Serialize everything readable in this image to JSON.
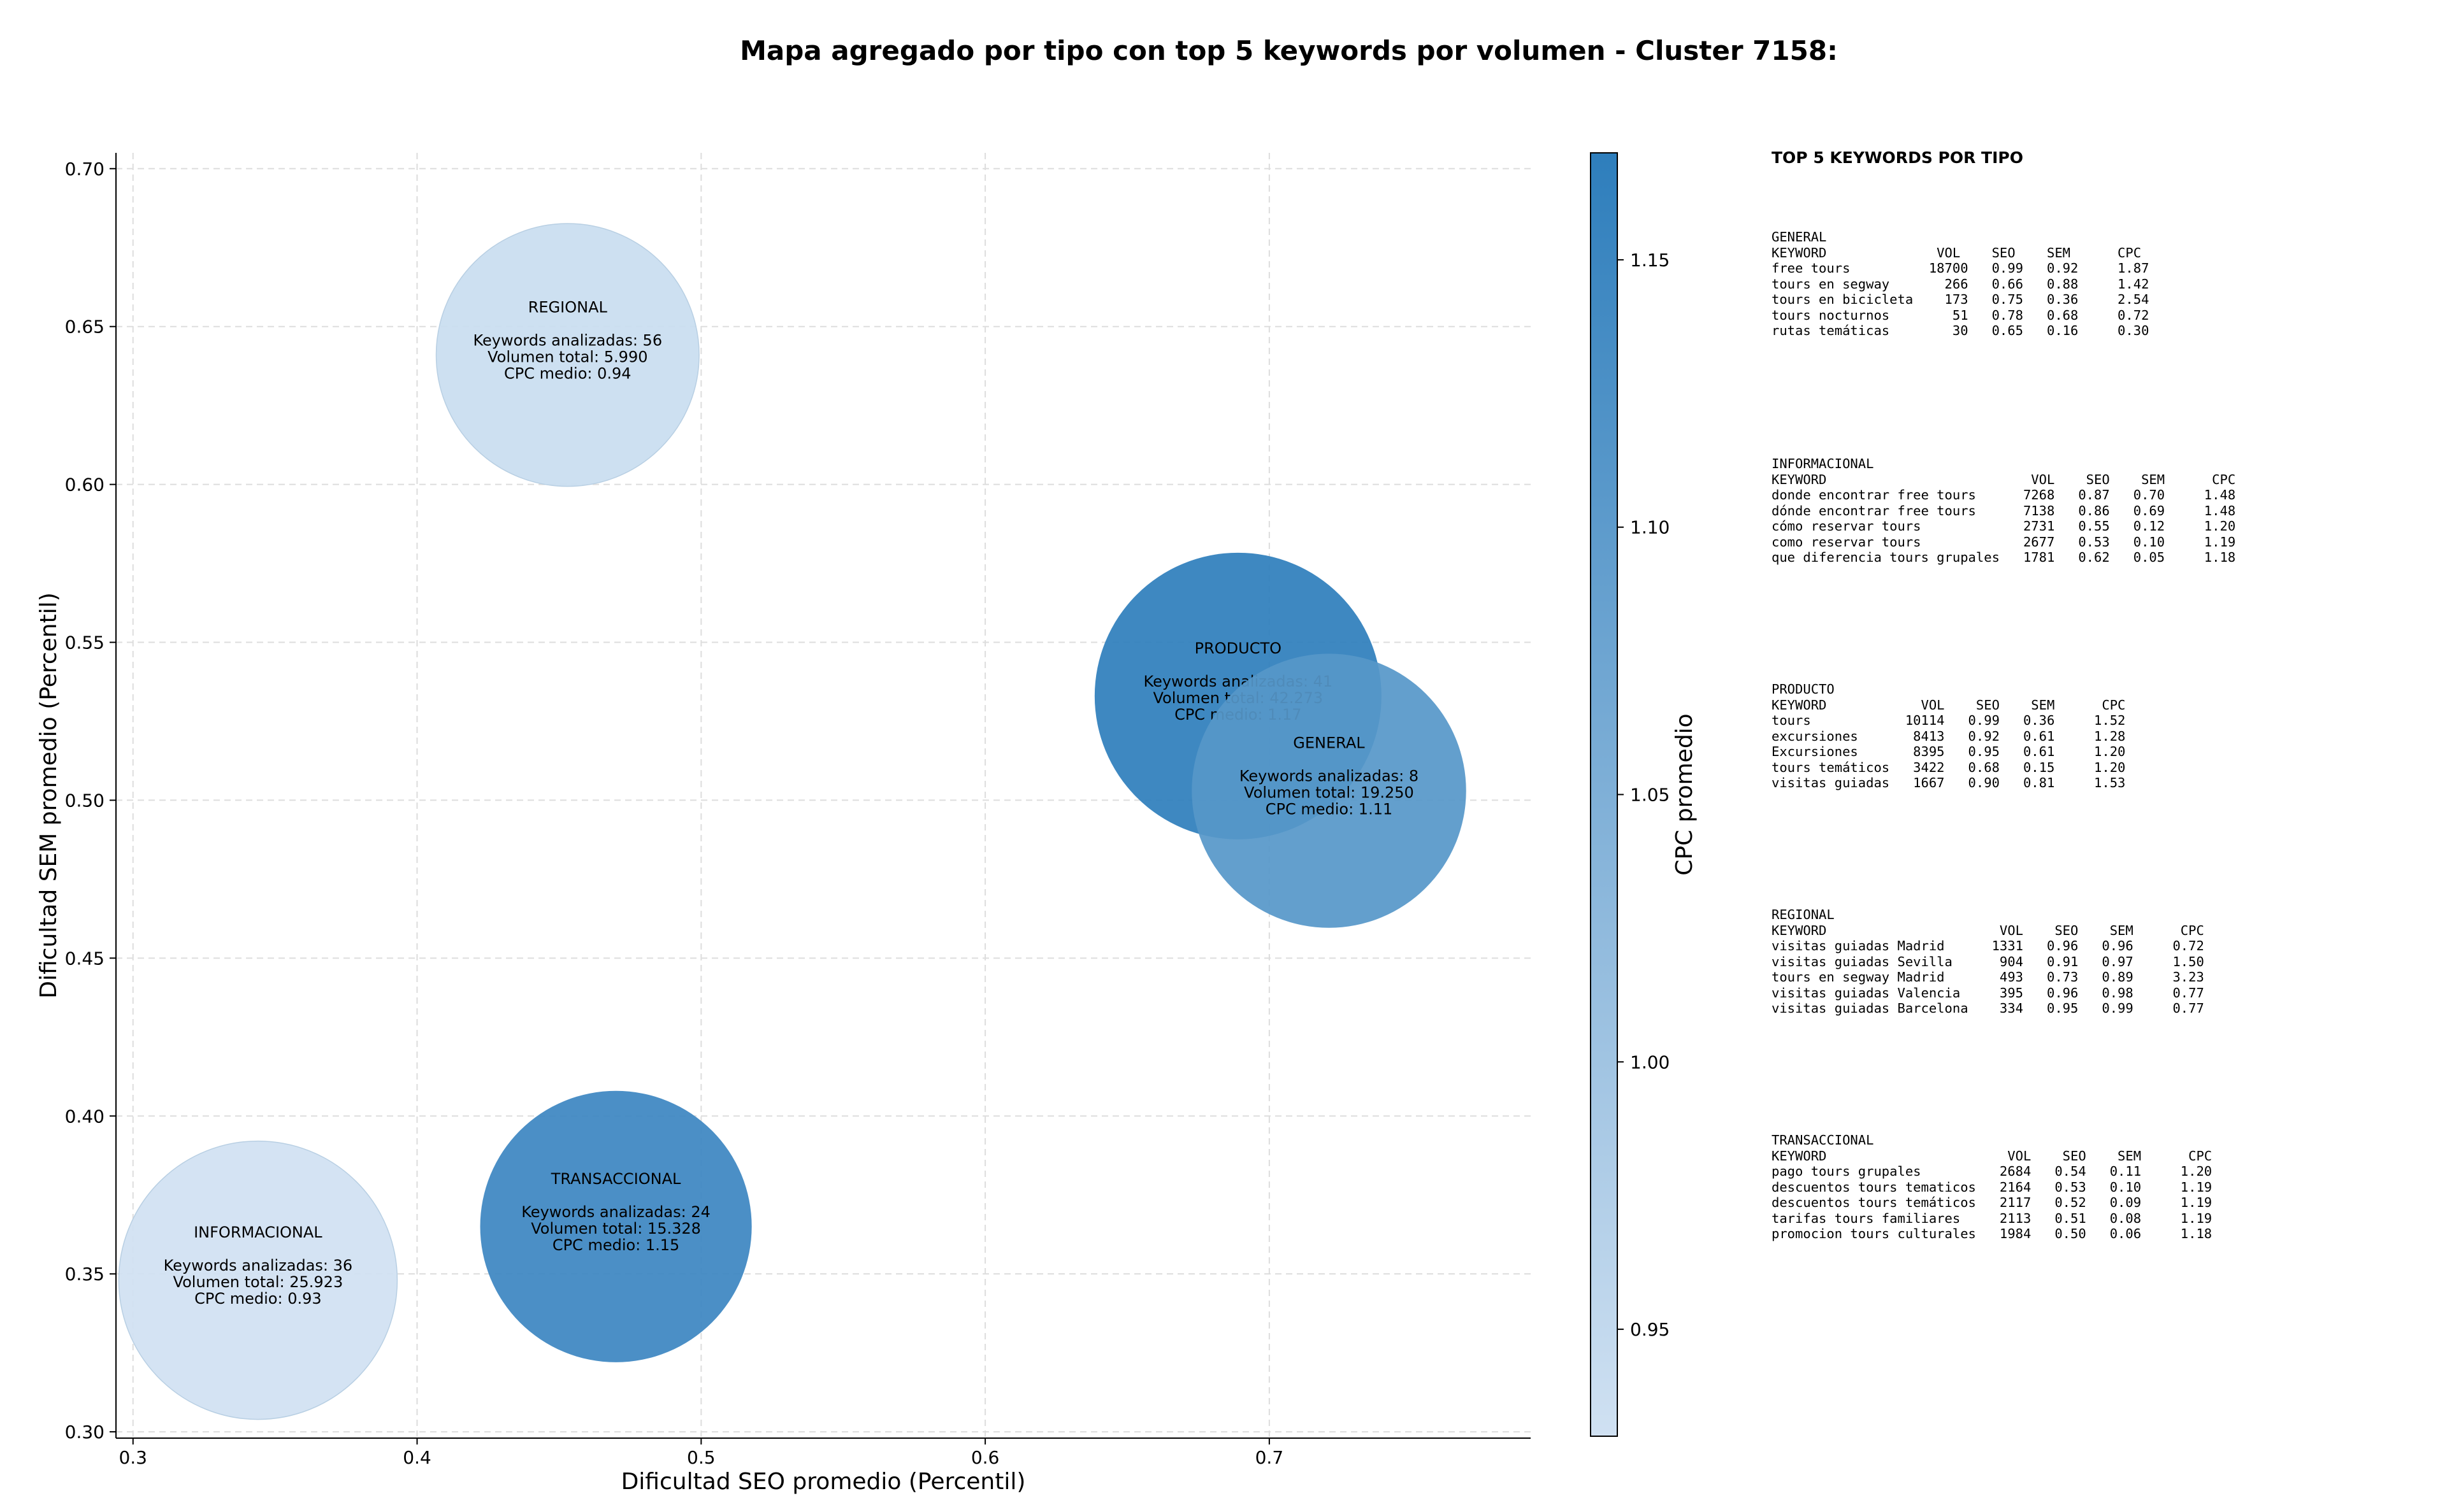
{
  "chart_data": {
    "type": "scatter",
    "title": "Mapa agregado por tipo con top 5 keywords por volumen - Cluster 7158:",
    "xlabel": "Dificultad SEO promedio (Percentil)",
    "ylabel": "Dificultad SEM promedio (Percentil)",
    "xlim": [
      0.294,
      0.792
    ],
    "ylim": [
      0.298,
      0.705
    ],
    "xticks": [
      0.3,
      0.4,
      0.5,
      0.6,
      0.7
    ],
    "xtick_labels": [
      "0.3",
      "0.4",
      "0.5",
      "0.6",
      "0.7"
    ],
    "yticks": [
      0.3,
      0.35,
      0.4,
      0.45,
      0.5,
      0.55,
      0.6,
      0.65,
      0.7
    ],
    "ytick_labels": [
      "0.30",
      "0.35",
      "0.40",
      "0.45",
      "0.50",
      "0.55",
      "0.60",
      "0.65",
      "0.70"
    ],
    "grid": true,
    "colorbar": {
      "label": "CPC promedio",
      "range": [
        0.93,
        1.17
      ],
      "ticks": [
        0.95,
        1.0,
        1.05,
        1.1,
        1.15
      ],
      "tick_labels": [
        "0.95",
        "1.00",
        "1.05",
        "1.10",
        "1.15"
      ]
    },
    "bubbles": [
      {
        "name": "REGIONAL",
        "x": 0.453,
        "y": 0.641,
        "keywords": 56,
        "volume": 5990,
        "cpc": 0.94,
        "lines": [
          "REGIONAL",
          "",
          "Keywords analizadas: 56",
          "Volumen total: 5.990",
          "CPC medio: 0.94"
        ]
      },
      {
        "name": "PRODUCTO",
        "x": 0.689,
        "y": 0.533,
        "keywords": 41,
        "volume": 42273,
        "cpc": 1.17,
        "lines": [
          "PRODUCTO",
          "",
          "Keywords analizadas: 41",
          "Volumen total: 42.273",
          "CPC medio: 1.17"
        ]
      },
      {
        "name": "GENERAL",
        "x": 0.721,
        "y": 0.503,
        "keywords": 8,
        "volume": 19250,
        "cpc": 1.11,
        "lines": [
          "GENERAL",
          "",
          "Keywords analizadas: 8",
          "Volumen total: 19.250",
          "CPC medio: 1.11"
        ]
      },
      {
        "name": "TRANSACCIONAL",
        "x": 0.47,
        "y": 0.365,
        "keywords": 24,
        "volume": 15328,
        "cpc": 1.15,
        "lines": [
          "TRANSACCIONAL",
          "",
          "Keywords analizadas: 24",
          "Volumen total: 15.328",
          "CPC medio: 1.15"
        ]
      },
      {
        "name": "INFORMACIONAL",
        "x": 0.344,
        "y": 0.348,
        "keywords": 36,
        "volume": 25923,
        "cpc": 0.93,
        "lines": [
          "INFORMACIONAL",
          "",
          "Keywords analizadas: 36",
          "Volumen total: 25.923",
          "CPC medio: 0.93"
        ]
      }
    ]
  },
  "colors": {
    "cpc_low": "#d0e1f2",
    "cpc_high": "#2e7ebc",
    "grid": "#dddddd"
  },
  "top5": {
    "title": "TOP 5 KEYWORDS POR TIPO",
    "blocks": [
      {
        "name": "GENERAL",
        "lines": [
          "GENERAL",
          "KEYWORD              VOL    SEO    SEM      CPC",
          "free tours          18700   0.99   0.92     1.87",
          "tours en segway       266   0.66   0.88     1.42",
          "tours en bicicleta    173   0.75   0.36     2.54",
          "tours nocturnos        51   0.78   0.68     0.72",
          "rutas temáticas        30   0.65   0.16     0.30"
        ]
      },
      {
        "name": "INFORMACIONAL",
        "lines": [
          "INFORMACIONAL",
          "KEYWORD                          VOL    SEO    SEM      CPC",
          "donde encontrar free tours      7268   0.87   0.70     1.48",
          "dónde encontrar free tours      7138   0.86   0.69     1.48",
          "cómo reservar tours             2731   0.55   0.12     1.20",
          "como reservar tours             2677   0.53   0.10     1.19",
          "que diferencia tours grupales   1781   0.62   0.05     1.18"
        ]
      },
      {
        "name": "PRODUCTO",
        "lines": [
          "PRODUCTO",
          "KEYWORD            VOL    SEO    SEM      CPC",
          "tours            10114   0.99   0.36     1.52",
          "excursiones       8413   0.92   0.61     1.28",
          "Excursiones       8395   0.95   0.61     1.20",
          "tours temáticos   3422   0.68   0.15     1.20",
          "visitas guiadas   1667   0.90   0.81     1.53"
        ]
      },
      {
        "name": "REGIONAL",
        "lines": [
          "REGIONAL",
          "KEYWORD                      VOL    SEO    SEM      CPC",
          "visitas guiadas Madrid      1331   0.96   0.96     0.72",
          "visitas guiadas Sevilla      904   0.91   0.97     1.50",
          "tours en segway Madrid       493   0.73   0.89     3.23",
          "visitas guiadas Valencia     395   0.96   0.98     0.77",
          "visitas guiadas Barcelona    334   0.95   0.99     0.77"
        ]
      },
      {
        "name": "TRANSACCIONAL",
        "lines": [
          "TRANSACCIONAL",
          "KEYWORD                       VOL    SEO    SEM      CPC",
          "pago tours grupales          2684   0.54   0.11     1.20",
          "descuentos tours tematicos   2164   0.53   0.10     1.19",
          "descuentos tours temáticos   2117   0.52   0.09     1.19",
          "tarifas tours familiares     2113   0.51   0.08     1.19",
          "promocion tours culturales   1984   0.50   0.06     1.18"
        ]
      }
    ]
  }
}
